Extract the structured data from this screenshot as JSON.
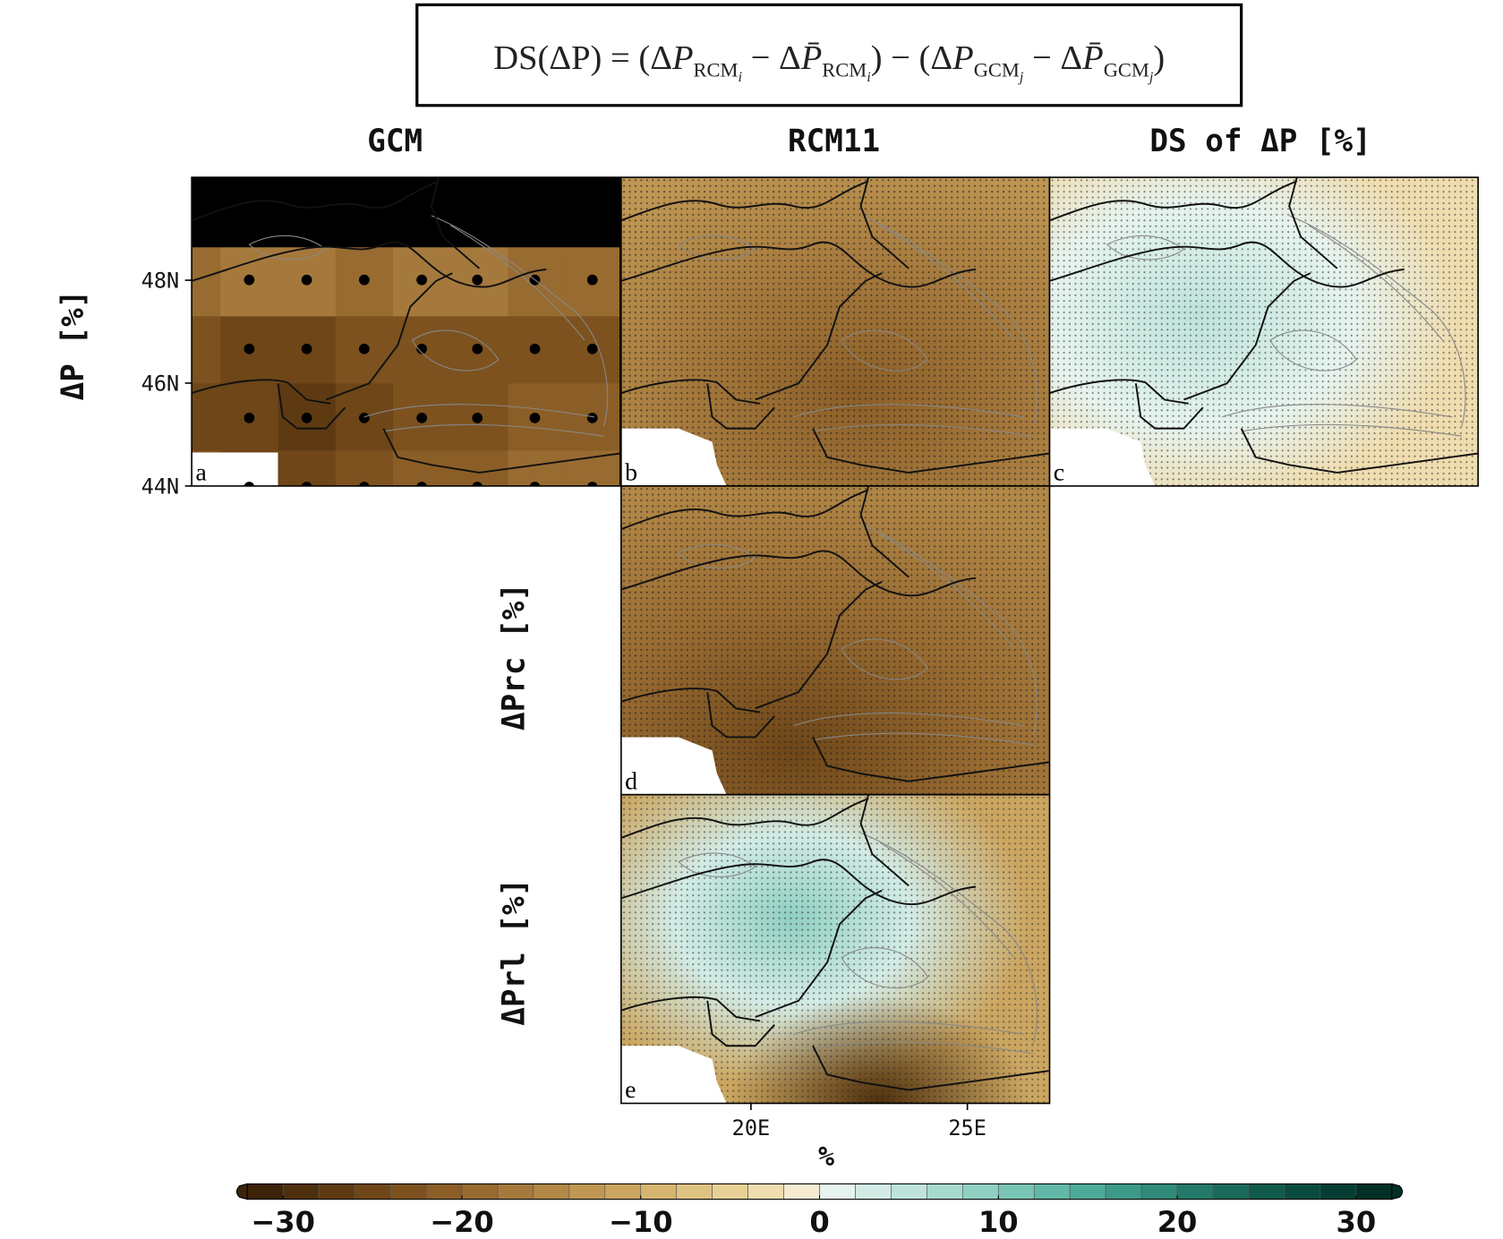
{
  "formula": [
    "DS(ΔP) = (Δ",
    "P",
    "RCM",
    "i",
    " − Δ",
    "P̄",
    "RCM",
    "i",
    ") − (Δ",
    "P",
    "GCM",
    "j",
    " − Δ",
    "P̄",
    "GCM",
    "j",
    ")"
  ],
  "columns": [
    "GCM",
    "RCM11",
    "DS of ΔP [%]"
  ],
  "rows": [
    "ΔP [%]",
    "ΔPrc [%]",
    "ΔPrl [%]"
  ],
  "panels": [
    "a",
    "b",
    "c",
    "d",
    "e"
  ],
  "map": {
    "xlim": [
      17,
      26.9
    ],
    "ylim": [
      44,
      50
    ],
    "yticks": [
      {
        "value": 48,
        "label": "48N"
      },
      {
        "value": 46,
        "label": "46N"
      },
      {
        "value": 44,
        "label": "44N"
      }
    ],
    "xticks": [
      {
        "value": 20,
        "label": "20E"
      },
      {
        "value": 25,
        "label": "25E"
      }
    ]
  },
  "colorbar": {
    "label": "%",
    "lim": [
      -32,
      32
    ],
    "ticks": [
      {
        "value": -30,
        "label": "−30"
      },
      {
        "value": -20,
        "label": "−20"
      },
      {
        "value": -10,
        "label": "−10"
      },
      0,
      10,
      20,
      30
    ],
    "colors": [
      "#3d2308",
      "#4e2f0d",
      "#5e3a12",
      "#6e4618",
      "#7d521f",
      "#8b5e27",
      "#986b31",
      "#a5793c",
      "#b28847",
      "#bf9753",
      "#cba661",
      "#d6b570",
      "#dfc382",
      "#e8d097",
      "#efddb0",
      "#f5ebd0",
      "#e6f3ef",
      "#d2ebe5",
      "#bde3da",
      "#a7dace",
      "#90d0c2",
      "#79c5b5",
      "#62b8a7",
      "#4eaa98",
      "#3d9a88",
      "#2f8a78",
      "#237a69",
      "#196a5a",
      "#105b4c",
      "#094c3f",
      "#043e33",
      "#013027"
    ]
  }
}
